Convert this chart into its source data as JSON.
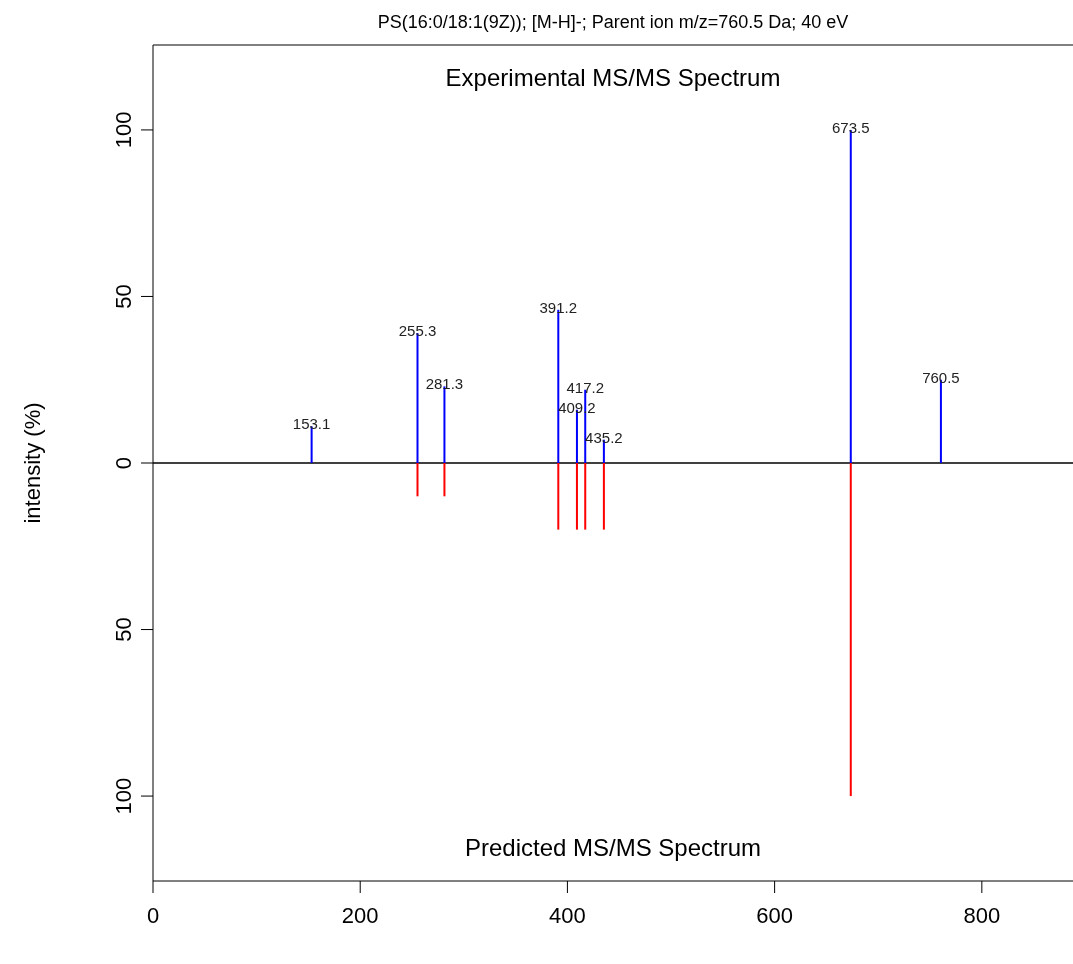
{
  "chart_data": [
    {
      "type": "bar",
      "title": "PS(16:0/18:1(9Z)); [M-H]-; Parent ion m/z=760.5 Da; 40 eV",
      "ylabel": "intensity (%)",
      "xlim": [
        0,
        888
      ],
      "ylim": [
        0,
        125.5
      ],
      "yticks": [
        0,
        50,
        100
      ],
      "tick_labels": "y",
      "series": [
        {
          "color": "#0000ff",
          "x": [
            153.1,
            255.3,
            281.3,
            391.2,
            409.2,
            417.2,
            435.2,
            673.5,
            760.5
          ],
          "values": [
            11,
            39,
            23,
            46,
            16,
            22,
            7,
            100,
            25
          ]
        }
      ],
      "annotations": [
        "Experimental MS/MS Spectrum",
        {
          "text": "153.1",
          "x": 153.1,
          "y": 11
        },
        {
          "text": "255.3",
          "x": 255.3,
          "y": 39
        },
        {
          "text": "281.3",
          "x": 281.3,
          "y": 23
        },
        {
          "text": "391.2",
          "x": 391.2,
          "y": 46
        },
        {
          "text": "409.2",
          "x": 409.2,
          "y": 16
        },
        {
          "text": "417.2",
          "x": 417.2,
          "y": 22
        },
        {
          "text": "435.2",
          "x": 435.2,
          "y": 7
        },
        {
          "text": "673.5",
          "x": 673.5,
          "y": 100
        },
        {
          "text": "760.5",
          "x": 760.5,
          "y": 25
        }
      ]
    },
    {
      "type": "bar",
      "xlim": [
        0,
        888
      ],
      "xticks": [
        0,
        200,
        400,
        600,
        800
      ],
      "ylim": [
        125.5,
        0
      ],
      "yticks": [
        50,
        100
      ],
      "series": [
        {
          "color": "#ff0000",
          "x": [
            255.3,
            281.3,
            391.2,
            409.2,
            417.2,
            435.2,
            673.5
          ],
          "values": [
            10,
            10,
            20,
            20,
            20,
            20,
            100
          ]
        }
      ],
      "annotations": [
        "Predicted MS/MS Spectrum"
      ]
    }
  ]
}
